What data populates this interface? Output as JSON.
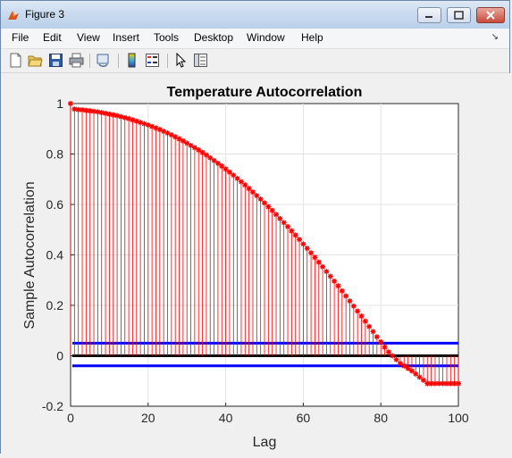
{
  "window": {
    "title": "Figure 3"
  },
  "menu": {
    "items": [
      "File",
      "Edit",
      "View",
      "Insert",
      "Tools",
      "Desktop",
      "Window",
      "Help"
    ]
  },
  "toolbar": {
    "icons": [
      "new-figure-icon",
      "open-file-icon",
      "save-icon",
      "print-icon",
      "link-icon",
      "colorbar-icon",
      "legend-icon",
      "pointer-icon",
      "property-editor-icon"
    ]
  },
  "chart_data": {
    "type": "stem",
    "title": "Temperature Autocorrelation",
    "xlabel": "Lag",
    "ylabel": "Sample Autocorrelation",
    "xlim": [
      0,
      100
    ],
    "ylim": [
      -0.2,
      1
    ],
    "xticks": [
      "0",
      "20",
      "40",
      "60",
      "80",
      "100"
    ],
    "yticks": [
      "1",
      "0.8",
      "0.6",
      "0.4",
      "0.2",
      "0",
      "-0.2"
    ],
    "grid": true,
    "series": [
      {
        "color": "#ff0000",
        "marker": "*",
        "lags_from": 0,
        "values": [
          1.0,
          0.978,
          0.976,
          0.975,
          0.973,
          0.971,
          0.969,
          0.967,
          0.964,
          0.961,
          0.958,
          0.955,
          0.952,
          0.948,
          0.944,
          0.94,
          0.935,
          0.93,
          0.925,
          0.92,
          0.915,
          0.909,
          0.903,
          0.897,
          0.89,
          0.883,
          0.876,
          0.868,
          0.86,
          0.852,
          0.843,
          0.834,
          0.825,
          0.816,
          0.806,
          0.796,
          0.785,
          0.774,
          0.763,
          0.752,
          0.74,
          0.728,
          0.716,
          0.703,
          0.69,
          0.677,
          0.663,
          0.649,
          0.635,
          0.621,
          0.606,
          0.591,
          0.576,
          0.56,
          0.544,
          0.528,
          0.512,
          0.495,
          0.478,
          0.461,
          0.443,
          0.426,
          0.408,
          0.39,
          0.371,
          0.353,
          0.334,
          0.315,
          0.296,
          0.277,
          0.257,
          0.237,
          0.217,
          0.197,
          0.177,
          0.157,
          0.137,
          0.116,
          0.096,
          0.075,
          0.055,
          0.034,
          0.015,
          0.0,
          -0.015,
          -0.03,
          -0.04,
          -0.05,
          -0.06,
          -0.072,
          -0.085,
          -0.097,
          -0.11,
          -0.11,
          -0.11,
          -0.11,
          -0.11,
          -0.11,
          -0.11,
          -0.11,
          -0.11
        ]
      }
    ],
    "reference_lines": [
      {
        "y": 0,
        "color": "#000000"
      },
      {
        "y": 0.05,
        "color": "#0000ff"
      },
      {
        "y": -0.04,
        "color": "#0000ff"
      }
    ]
  }
}
